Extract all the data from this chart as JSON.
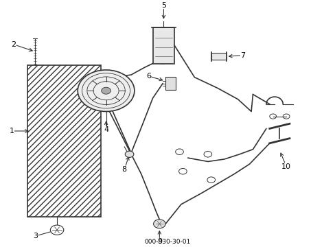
{
  "title": "000-830-30-01",
  "background_color": "#ffffff",
  "line_color": "#333333",
  "label_color": "#000000",
  "fig_width": 4.89,
  "fig_height": 3.6,
  "dpi": 100
}
